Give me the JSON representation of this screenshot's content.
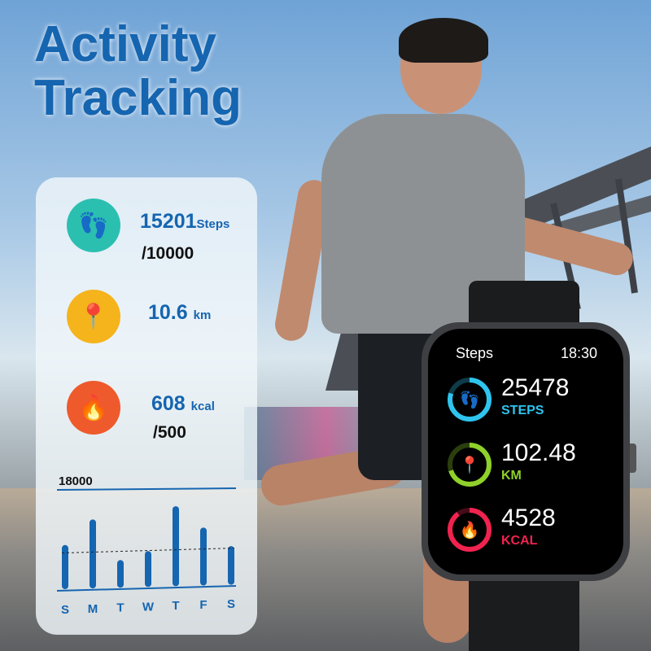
{
  "headline": [
    "Activity",
    "Tracking"
  ],
  "panel": {
    "steps": {
      "value": "15201",
      "unit": "Steps",
      "goal": "/10000",
      "icon": "footprints-icon",
      "color": "#2bbfb0"
    },
    "distance": {
      "value": "10.6",
      "unit": "km",
      "icon": "location-pin-icon",
      "color": "#f5b31c"
    },
    "calories": {
      "value": "608",
      "unit": "kcal",
      "goal": "/500",
      "icon": "flame-icon",
      "color": "#ee5a2c"
    }
  },
  "chart_data": {
    "type": "bar",
    "top_label": "18000",
    "categories": [
      "S",
      "M",
      "T",
      "W",
      "T",
      "F",
      "S"
    ],
    "values": [
      8000,
      12500,
      5000,
      6500,
      14500,
      10500,
      7000
    ],
    "average": 7000,
    "ylim": [
      0,
      18000
    ],
    "color": "#1565b0"
  },
  "watch": {
    "title": "Steps",
    "time": "18:30",
    "metrics": [
      {
        "value": "25478",
        "label": "STEPS",
        "color": "#2ec4ee",
        "progress": 0.8,
        "icon": "footprints-icon"
      },
      {
        "value": "102.48",
        "label": "KM",
        "color": "#8fd12a",
        "progress": 0.7,
        "icon": "location-pin-icon"
      },
      {
        "value": "4528",
        "label": "KCAL",
        "color": "#f0234f",
        "progress": 0.9,
        "icon": "flame-icon"
      }
    ]
  }
}
